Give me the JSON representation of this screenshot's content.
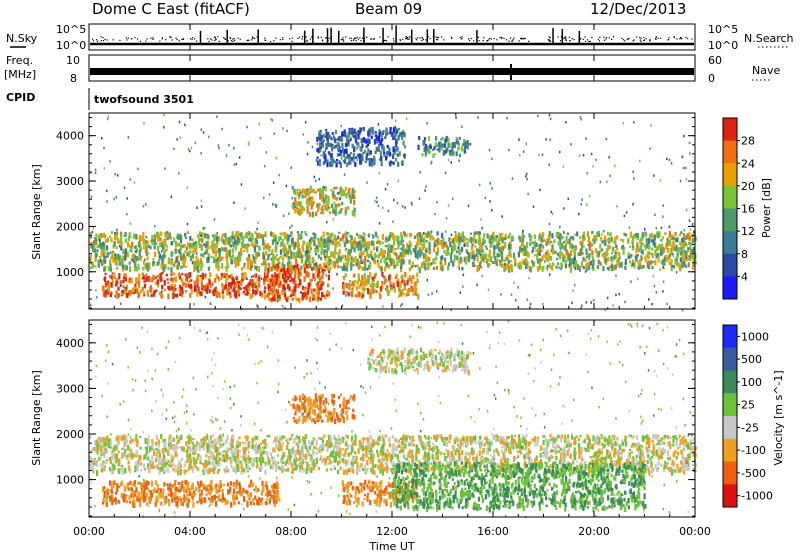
{
  "header": {
    "station": "Dome C East (fitACF)",
    "beam": "Beam 09",
    "date": "12/Dec/2013"
  },
  "status_panels": {
    "nsky_label": "N.Sky",
    "nsky_ticks": [
      "10^5",
      "10^0"
    ],
    "nsearch_label": "N.Search",
    "nsearch_ticks": [
      "10^5",
      "10^0"
    ],
    "freq_label": "Freq.",
    "freq_unit": "[MHz]",
    "freq_ticks": [
      "10",
      "8"
    ],
    "nave_label": "Nave",
    "nave_ticks": [
      "60",
      "0"
    ],
    "cpid_label": "CPID",
    "cpid_value": "twofsound 3501"
  },
  "chart_data": [
    {
      "type": "heatmap",
      "quantity": "Power",
      "ylabel": "Slant Range [km]",
      "xlabel": "Time UT",
      "xlim": [
        0,
        24
      ],
      "ylim": [
        180,
        4500
      ],
      "y_ticks": [
        "1000",
        "2000",
        "3000",
        "4000"
      ],
      "x_ticks": [
        "00:00",
        "04:00",
        "08:00",
        "12:00",
        "16:00",
        "20:00",
        "00:00"
      ],
      "colorbar": {
        "title": "Power [dB]",
        "range": [
          0,
          32
        ],
        "tick_labels": [
          "4",
          "8",
          "12",
          "16",
          "20",
          "24",
          "28"
        ],
        "colors": [
          "#1a1aff",
          "#2a4aa8",
          "#3a7a9a",
          "#4a9a6a",
          "#7ac43a",
          "#eaa000",
          "#f07010",
          "#e02010"
        ]
      },
      "features": [
        {
          "t_start": 0.0,
          "t_end": 24.0,
          "range_low": 1100,
          "range_high": 1900,
          "power_db": 18
        },
        {
          "t_start": 0.5,
          "t_end": 7.5,
          "range_low": 500,
          "range_high": 1000,
          "power_db": 28
        },
        {
          "t_start": 7.0,
          "t_end": 9.5,
          "range_low": 400,
          "range_high": 1200,
          "power_db": 28
        },
        {
          "t_start": 10.0,
          "t_end": 13.0,
          "range_low": 500,
          "range_high": 1000,
          "power_db": 24
        },
        {
          "t_start": 8.0,
          "t_end": 10.5,
          "range_low": 2300,
          "range_high": 2900,
          "power_db": 20
        },
        {
          "t_start": 9.0,
          "t_end": 12.5,
          "range_low": 3400,
          "range_high": 4200,
          "power_db": 8
        },
        {
          "t_start": 13.0,
          "t_end": 15.0,
          "range_low": 3600,
          "range_high": 4000,
          "power_db": 12
        }
      ]
    },
    {
      "type": "heatmap",
      "quantity": "Velocity",
      "ylabel": "Slant Range [km]",
      "xlabel": "Time UT",
      "xlim": [
        0,
        24
      ],
      "ylim": [
        180,
        4500
      ],
      "y_ticks": [
        "1000",
        "2000",
        "3000",
        "4000"
      ],
      "x_ticks": [
        "00:00",
        "04:00",
        "08:00",
        "12:00",
        "16:00",
        "20:00",
        "00:00"
      ],
      "colorbar": {
        "title": "Velocity [m s^-1]",
        "tick_labels": [
          "1000",
          "500",
          "100",
          "25",
          "-25",
          "-100",
          "-500",
          "-1000"
        ],
        "colors": [
          "#1a2aff",
          "#3a5aa0",
          "#3a8a5a",
          "#6ac43a",
          "#c8c8c8",
          "#f0a020",
          "#f06010",
          "#e01010"
        ]
      },
      "features": [
        {
          "t_start": 0.0,
          "t_end": 24.0,
          "range_low": 1200,
          "range_high": 2000,
          "velocity_ms": 0
        },
        {
          "t_start": 0.5,
          "t_end": 7.5,
          "range_low": 500,
          "range_high": 1000,
          "velocity_ms": -100
        },
        {
          "t_start": 10.0,
          "t_end": 13.0,
          "range_low": 500,
          "range_high": 1000,
          "velocity_ms": -100
        },
        {
          "t_start": 12.0,
          "t_end": 22.0,
          "range_low": 400,
          "range_high": 1400,
          "velocity_ms": 100
        },
        {
          "t_start": 8.0,
          "t_end": 10.5,
          "range_low": 2300,
          "range_high": 2900,
          "velocity_ms": -100
        },
        {
          "t_start": 11.0,
          "t_end": 15.0,
          "range_low": 3400,
          "range_high": 3900,
          "velocity_ms": 0
        }
      ]
    }
  ]
}
